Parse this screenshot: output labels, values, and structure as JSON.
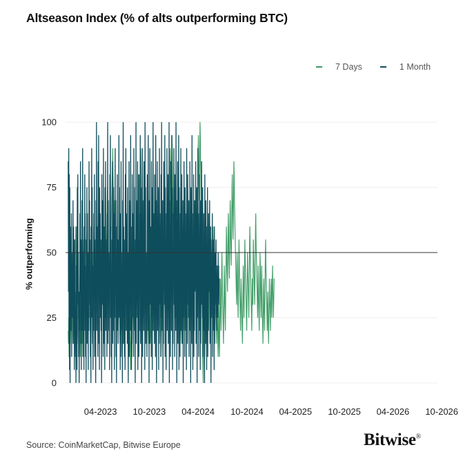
{
  "brand": {
    "name": "Bitwise",
    "registered_mark": "®"
  },
  "source": "Source: CoinMarketCap, Bitwise Europe",
  "colors": {
    "seven_day": "#3a9a62",
    "one_month": "#0e4d5c",
    "reference_line": "#333333",
    "grid": "#eeeeee"
  },
  "chart_data": {
    "type": "line",
    "title": "Altseason Index (% of alts outperforming BTC)",
    "xlabel": "",
    "ylabel": "% outperforming",
    "xlim": [
      "2022-11-21",
      "2026-09-15"
    ],
    "ylim": [
      0,
      100
    ],
    "yticks": [
      0,
      25,
      50,
      75,
      100
    ],
    "xticks": [
      "04-2023",
      "10-2023",
      "04-2024",
      "10-2024",
      "04-2025",
      "10-2025",
      "04-2026",
      "10-2026"
    ],
    "reference_line": 50,
    "grid": true,
    "legend_position": "top-right",
    "data_frequency": "daily",
    "series": [
      {
        "name": "7 Days",
        "color": "#3a9a62",
        "start": "2022-12-01",
        "values": [
          20,
          15,
          25,
          10,
          30,
          20,
          25,
          35,
          15,
          20,
          30,
          25,
          20,
          40,
          35,
          25,
          30,
          20,
          15,
          45,
          35,
          50,
          40,
          30,
          25,
          55,
          45,
          35,
          60,
          40,
          30,
          20,
          25,
          35,
          15,
          20,
          30,
          25,
          40,
          35,
          20,
          15,
          25,
          30,
          20,
          10,
          25,
          35,
          20,
          30,
          40,
          25,
          15,
          20,
          35,
          30,
          25,
          45,
          55,
          40,
          35,
          50,
          45,
          60,
          65,
          50,
          40,
          30,
          55,
          45,
          35,
          25,
          30,
          20,
          40,
          50,
          45,
          35,
          30,
          25,
          40,
          35,
          20,
          30,
          25,
          15,
          20,
          35,
          40,
          30,
          25,
          45,
          50,
          40,
          35,
          55,
          60,
          45,
          50,
          40,
          30,
          25,
          35,
          45,
          40,
          55,
          50,
          35,
          30,
          45,
          60,
          55,
          70,
          65,
          50,
          45,
          60,
          55,
          40,
          35,
          30,
          45,
          50,
          40,
          35,
          25,
          30,
          45,
          55,
          65,
          70,
          60,
          50,
          45,
          40,
          55,
          60,
          50,
          45,
          35,
          30,
          40,
          50,
          45,
          55,
          60,
          70,
          75,
          65,
          55,
          50,
          45,
          40,
          35,
          30,
          25,
          35,
          40,
          50,
          45,
          55,
          60,
          65,
          70,
          75,
          80,
          85,
          90,
          80,
          75,
          70,
          60,
          55,
          65,
          70,
          60,
          55,
          45,
          40,
          35,
          30,
          40,
          45,
          35,
          30,
          25,
          20,
          30,
          35,
          45,
          40,
          30,
          25,
          20,
          15,
          25,
          30,
          40,
          35,
          25,
          20,
          15,
          10,
          20,
          25,
          30,
          35,
          40,
          30,
          25,
          20,
          15,
          25,
          35,
          45,
          50,
          40,
          35,
          30,
          20,
          25,
          30,
          35,
          25,
          20,
          15,
          10,
          20,
          30,
          35,
          25,
          20,
          15,
          10,
          5,
          15,
          25,
          20,
          15,
          10,
          20,
          30,
          40,
          35,
          25,
          20,
          30,
          40,
          50,
          45,
          35,
          30,
          40,
          50,
          60,
          55,
          45,
          40,
          50,
          60,
          70,
          65,
          55,
          50,
          60,
          70,
          80,
          75,
          65,
          60,
          70,
          80,
          90,
          85,
          75,
          70,
          60,
          50,
          40,
          30,
          25,
          35,
          45,
          55,
          65,
          60,
          50,
          45,
          40,
          35,
          30,
          25,
          20,
          30,
          40,
          50,
          45,
          35,
          30,
          25,
          20,
          15,
          25,
          35,
          30,
          25,
          20,
          15,
          20,
          30,
          40,
          35,
          30,
          25,
          35,
          45,
          55,
          50,
          40,
          35,
          45,
          55,
          65,
          60,
          50,
          45,
          40,
          50,
          60,
          55,
          45,
          40,
          35,
          30,
          25,
          35,
          45,
          40,
          30,
          25,
          20,
          15,
          20,
          25,
          30,
          25,
          20,
          15,
          10,
          15,
          20,
          25,
          30,
          40,
          35,
          30,
          45,
          55,
          50,
          45,
          40,
          35,
          30,
          25,
          35,
          45,
          55,
          50,
          45,
          40,
          35,
          45,
          55,
          65,
          75,
          70,
          60,
          55,
          50,
          60,
          70,
          80,
          90,
          85,
          75,
          70,
          65,
          75,
          85,
          95,
          90,
          80,
          70,
          60,
          50,
          55,
          65,
          75,
          70,
          60,
          50,
          45,
          40,
          35,
          30,
          25,
          35,
          45,
          55,
          50,
          40,
          35,
          30,
          25,
          20,
          30,
          40,
          35,
          25,
          20,
          15,
          20,
          25,
          35,
          30,
          20,
          15,
          25,
          35,
          45,
          40,
          30,
          25,
          20,
          30,
          40,
          50,
          45,
          35,
          30,
          25,
          35,
          45,
          40,
          30,
          25,
          20,
          15,
          25,
          35,
          45,
          55,
          50,
          40,
          35,
          30,
          40,
          50,
          60,
          55,
          45,
          40,
          35,
          45,
          55,
          65,
          60,
          50,
          45,
          40,
          50,
          60,
          70,
          65,
          55,
          50,
          45,
          55,
          65,
          75,
          70,
          60,
          55,
          50,
          60,
          70,
          80,
          90,
          95,
          85,
          75,
          70,
          80,
          90,
          100,
          95,
          85,
          80,
          70,
          60,
          50,
          40,
          30,
          20,
          10,
          5,
          0,
          10,
          20,
          30,
          25,
          15,
          10,
          20,
          30,
          40,
          35,
          25,
          20,
          15,
          25,
          35,
          45,
          40,
          30,
          25,
          20,
          30,
          40,
          50,
          45,
          35,
          30,
          25,
          35,
          45,
          55,
          50,
          40,
          35,
          30,
          40,
          50,
          60,
          55,
          45,
          40,
          35,
          30,
          25,
          20,
          30,
          40,
          35,
          25,
          20,
          15,
          25,
          35,
          30,
          20,
          15,
          10,
          20,
          30,
          25,
          15,
          10,
          20,
          30,
          40,
          35,
          25,
          20,
          30,
          40,
          50,
          45,
          35,
          30,
          25,
          20,
          15,
          25,
          35,
          45,
          40,
          30,
          25,
          20,
          30,
          40,
          50,
          60,
          55,
          45,
          40,
          35,
          45,
          55,
          65,
          60,
          50,
          45,
          40,
          50,
          60,
          70,
          65,
          55,
          50,
          45,
          55,
          65,
          75,
          80,
          70,
          60,
          55,
          65,
          75,
          85,
          80,
          70,
          65,
          60,
          55,
          50,
          45,
          40,
          35,
          30,
          40,
          50,
          45,
          35,
          30,
          25,
          35,
          45,
          55,
          50,
          40,
          35,
          30,
          25,
          20,
          30,
          40,
          35,
          30,
          25,
          20,
          15,
          25,
          35,
          45,
          40,
          30,
          25,
          35,
          45,
          55,
          50,
          45,
          40,
          35,
          30,
          25,
          20,
          30,
          40,
          50,
          45,
          40,
          35,
          30,
          25,
          35,
          45,
          55,
          60,
          50,
          45,
          40,
          35,
          30,
          25,
          20,
          30,
          40,
          35,
          30,
          45,
          55,
          50,
          45,
          40,
          35,
          30,
          40,
          50,
          60,
          65,
          55,
          50,
          45,
          40,
          35,
          30,
          25,
          35,
          45,
          40,
          30,
          25,
          20,
          30,
          40,
          50,
          45,
          35,
          30,
          25,
          35,
          45,
          40,
          30,
          25,
          20,
          15,
          25,
          35,
          40,
          30,
          25,
          20,
          30,
          40,
          50,
          55,
          45,
          40,
          35,
          30,
          25,
          20,
          30,
          35,
          25,
          20,
          15,
          25,
          30,
          40,
          35,
          30,
          25,
          20,
          30,
          35,
          40,
          30,
          25,
          35,
          40,
          45,
          35,
          30,
          25,
          30,
          35,
          40
        ],
        "note_values": "daily 7-day values"
      },
      {
        "name": "1 Month",
        "color": "#0e4d5c",
        "start": "2022-12-01",
        "values": [
          85,
          35,
          90,
          15,
          80,
          5,
          75,
          0,
          60,
          40,
          55,
          20,
          65,
          10,
          45,
          30,
          50,
          25,
          70,
          15,
          60,
          35,
          40,
          5,
          55,
          20,
          35,
          10,
          25,
          0,
          45,
          15,
          60,
          5,
          75,
          40,
          80,
          30,
          50,
          10,
          35,
          0,
          25,
          20,
          65,
          45,
          85,
          15,
          55,
          5,
          40,
          30,
          70,
          20,
          90,
          10,
          50,
          25,
          35,
          5,
          60,
          40,
          80,
          20,
          45,
          10,
          30,
          0,
          55,
          35,
          75,
          15,
          65,
          25,
          50,
          5,
          40,
          20,
          85,
          45,
          70,
          30,
          55,
          10,
          35,
          0,
          60,
          25,
          90,
          40,
          75,
          15,
          45,
          5,
          30,
          20,
          65,
          35,
          80,
          10,
          55,
          25,
          40,
          0,
          70,
          45,
          100,
          20,
          60,
          30,
          50,
          10,
          85,
          35,
          95,
          15,
          45,
          5,
          75,
          40,
          65,
          25,
          55,
          20,
          35,
          0,
          80,
          30,
          70,
          45,
          50,
          10,
          90,
          15,
          60,
          35,
          40,
          5,
          75,
          25,
          85,
          20,
          55,
          30,
          45,
          10,
          65,
          40,
          100,
          15,
          70,
          35,
          50,
          20,
          40,
          5,
          80,
          45,
          95,
          25,
          60,
          10,
          30,
          0,
          55,
          35,
          85,
          15,
          45,
          20,
          75,
          30,
          65,
          5,
          50,
          25,
          90,
          40,
          70,
          10,
          35,
          0,
          60,
          45,
          80,
          20,
          55,
          15,
          40,
          30,
          95,
          25,
          75,
          35,
          45,
          5,
          65,
          10,
          85,
          40,
          50,
          20,
          30,
          0,
          70,
          25,
          100,
          15,
          60,
          35,
          55,
          10,
          45,
          5,
          80,
          30,
          90,
          20,
          40,
          45,
          65,
          15,
          75,
          25,
          50,
          0,
          35,
          35,
          85,
          10,
          70,
          40,
          55,
          20,
          95,
          30,
          60,
          5,
          45,
          15,
          80,
          45,
          65,
          25,
          40,
          10,
          90,
          35,
          75,
          20,
          50,
          0,
          55,
          30,
          100,
          15,
          70,
          40,
          45,
          25,
          85,
          5,
          60,
          35,
          80,
          10,
          50,
          20,
          65,
          45,
          95,
          15,
          40,
          30,
          75,
          0,
          55,
          25,
          90,
          10,
          70,
          35,
          45,
          20,
          85,
          40,
          60,
          5,
          100,
          30,
          75,
          15,
          50,
          25,
          40,
          10,
          80,
          45,
          65,
          20,
          95,
          35,
          55,
          0,
          70,
          15,
          90,
          30,
          45,
          40,
          60,
          10,
          85,
          25,
          75,
          5,
          50,
          35,
          100,
          20,
          65,
          45,
          40,
          15,
          80,
          30,
          55,
          10,
          95,
          25,
          70,
          0,
          45,
          40,
          85,
          20,
          60,
          35,
          75,
          5,
          50,
          15,
          90,
          30,
          65,
          45,
          40,
          10,
          80,
          25,
          100,
          20,
          55,
          35,
          70,
          0,
          45,
          15,
          85,
          40,
          60,
          30,
          95,
          10,
          75,
          25,
          50,
          5,
          65,
          45,
          90,
          20,
          40,
          35,
          80,
          15,
          55,
          30,
          100,
          0,
          70,
          25,
          45,
          10,
          85,
          40,
          60,
          20,
          95,
          35,
          75,
          5,
          50,
          15,
          65,
          45,
          90,
          30,
          40,
          10,
          80,
          25,
          55,
          20,
          100,
          35,
          70,
          0,
          45,
          40,
          85,
          15,
          60,
          30,
          95,
          5,
          75,
          25,
          50,
          10,
          65,
          45,
          90,
          20,
          40,
          35,
          80,
          15,
          55,
          30,
          70,
          0,
          45,
          25,
          85,
          40,
          60,
          10,
          75,
          20,
          50,
          35,
          65,
          5,
          90,
          15,
          45,
          30,
          80,
          45,
          55,
          25,
          70,
          10,
          40,
          20,
          85,
          35,
          60,
          0,
          75,
          40,
          50,
          15,
          95,
          30,
          65,
          5,
          45,
          25,
          80,
          10,
          55,
          20,
          70,
          35,
          40,
          45,
          85,
          15,
          60,
          30,
          75,
          0,
          50,
          25,
          90,
          40,
          65,
          10,
          45,
          20,
          80,
          35,
          55,
          5,
          70,
          15,
          60,
          30,
          85,
          45,
          40,
          25,
          75,
          10,
          50,
          20,
          65,
          35,
          45,
          0,
          80,
          40,
          55,
          15,
          70,
          30,
          60,
          5,
          45,
          25,
          75,
          10,
          50,
          20,
          65,
          35,
          40,
          45,
          70,
          15,
          55,
          30,
          60,
          0,
          45,
          25,
          50,
          40,
          65,
          10,
          40,
          20,
          55,
          35,
          45,
          5,
          60,
          15,
          50,
          30,
          40,
          45,
          55,
          25,
          35,
          20,
          45,
          30,
          40,
          25,
          50,
          35,
          45,
          30,
          40
        ],
        "note_values": "daily 1-month values"
      }
    ]
  }
}
